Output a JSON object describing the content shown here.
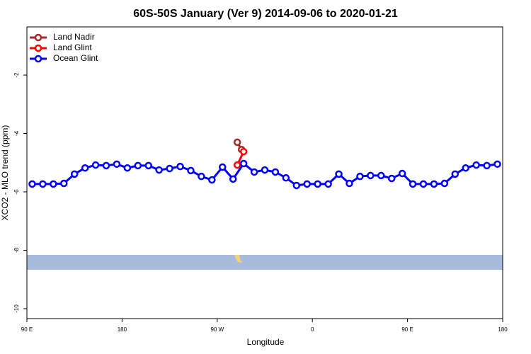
{
  "chart_data": {
    "type": "line",
    "title": "60S-50S January (Ver 9)   2014-09-06 to 2020-01-21",
    "x_label": "Longitude",
    "y_label": "XCO2 - MLO trend (ppm)",
    "xlim": [
      90,
      540
    ],
    "xticks": [
      {
        "value": 90,
        "label": "90 E"
      },
      180,
      {
        "value": 270,
        "label": "90 W"
      },
      {
        "value": 360,
        "label": "0"
      },
      {
        "value": 450,
        "label": "90 E"
      },
      {
        "value": 540,
        "label": "180"
      }
    ],
    "ylim": [
      -10.34,
      -0.35
    ],
    "yticks": [
      -2,
      -4,
      -6,
      -8,
      -10
    ],
    "legend": "top-left",
    "series": [
      {
        "name": "Land Nadir",
        "color": "#a52a2a",
        "x": [
          289,
          293
        ],
        "values": [
          -4.3,
          -4.55
        ]
      },
      {
        "name": "Land Glint",
        "color": "#ff0000",
        "x": [
          289,
          295
        ],
        "values": [
          -5.08,
          -4.62
        ]
      },
      {
        "name": "Ocean Glint",
        "color": "#0000ff",
        "x": [
          95,
          105,
          115,
          125,
          135,
          145,
          155,
          165,
          175,
          185,
          195,
          205,
          215,
          225,
          235,
          245,
          255,
          265,
          275,
          285,
          295,
          305,
          315,
          325,
          335,
          345,
          355,
          365,
          375,
          385,
          395,
          405,
          415,
          425,
          435,
          445,
          455,
          465,
          475,
          485,
          495,
          505,
          515,
          525,
          535
        ],
        "values": [
          -5.73,
          -5.73,
          -5.73,
          -5.71,
          -5.39,
          -5.18,
          -5.08,
          -5.1,
          -5.05,
          -5.18,
          -5.1,
          -5.1,
          -5.25,
          -5.2,
          -5.13,
          -5.27,
          -5.47,
          -5.59,
          -5.15,
          -5.56,
          -5.03,
          -5.32,
          -5.25,
          -5.32,
          -5.52,
          -5.78,
          -5.73,
          -5.73,
          -5.73,
          -5.39,
          -5.71,
          -5.47,
          -5.44,
          -5.44,
          -5.54,
          -5.37,
          -5.73,
          -5.73,
          -5.73,
          -5.71,
          -5.39,
          -5.18,
          -5.08,
          -5.1,
          -5.05
        ]
      }
    ]
  }
}
